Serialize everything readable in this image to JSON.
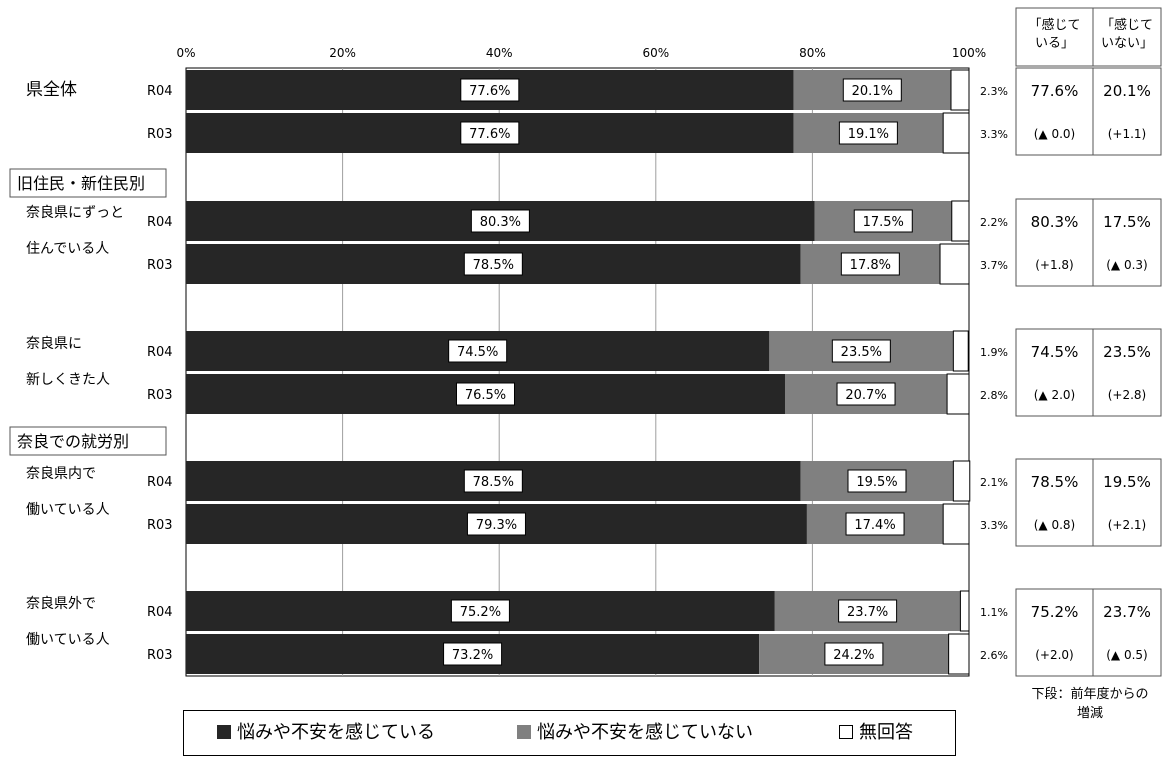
{
  "chart_data": {
    "type": "bar",
    "stacked": true,
    "orientation": "horizontal",
    "x_ticks": [
      "0%",
      "20%",
      "40%",
      "60%",
      "80%",
      "100%"
    ],
    "xlim": [
      0,
      100
    ],
    "grid": true,
    "legend_position": "bottom",
    "series": [
      {
        "name": "悩みや不安を感じている",
        "color": "#262626"
      },
      {
        "name": "悩みや不安を感じていない",
        "color": "#808080"
      },
      {
        "name": "無回答",
        "color": "#ffffff"
      }
    ],
    "summary_headers": [
      "「感じて\nいる」",
      "「感じて\nいない」"
    ],
    "groups": [
      {
        "section_header": "",
        "label_lines": [
          "県全体"
        ],
        "rows": [
          {
            "year": "R04",
            "values": [
              77.6,
              20.1,
              2.3
            ],
            "labels": [
              "77.6%",
              "20.1%",
              "2.3%"
            ]
          },
          {
            "year": "R03",
            "values": [
              77.6,
              19.1,
              3.3
            ],
            "labels": [
              "77.6%",
              "19.1%",
              "3.3%"
            ]
          }
        ],
        "summary": {
          "top": [
            "77.6%",
            "20.1%"
          ],
          "bottom": [
            "(▲ 0.0)",
            "(+1.1)"
          ]
        }
      },
      {
        "section_header": "旧住民・新住民別",
        "label_lines": [
          "奈良県にずっと",
          "住んでいる人"
        ],
        "rows": [
          {
            "year": "R04",
            "values": [
              80.3,
              17.5,
              2.2
            ],
            "labels": [
              "80.3%",
              "17.5%",
              "2.2%"
            ]
          },
          {
            "year": "R03",
            "values": [
              78.5,
              17.8,
              3.7
            ],
            "labels": [
              "78.5%",
              "17.8%",
              "3.7%"
            ]
          }
        ],
        "summary": {
          "top": [
            "80.3%",
            "17.5%"
          ],
          "bottom": [
            "(+1.8)",
            "(▲ 0.3)"
          ]
        }
      },
      {
        "section_header": "",
        "label_lines": [
          "奈良県に",
          "新しくきた人"
        ],
        "rows": [
          {
            "year": "R04",
            "values": [
              74.5,
              23.5,
              1.9
            ],
            "labels": [
              "74.5%",
              "23.5%",
              "1.9%"
            ]
          },
          {
            "year": "R03",
            "values": [
              76.5,
              20.7,
              2.8
            ],
            "labels": [
              "76.5%",
              "20.7%",
              "2.8%"
            ]
          }
        ],
        "summary": {
          "top": [
            "74.5%",
            "23.5%"
          ],
          "bottom": [
            "(▲ 2.0)",
            "(+2.8)"
          ]
        }
      },
      {
        "section_header": "奈良での就労別",
        "label_lines": [
          "奈良県内で",
          "働いている人"
        ],
        "rows": [
          {
            "year": "R04",
            "values": [
              78.5,
              19.5,
              2.1
            ],
            "labels": [
              "78.5%",
              "19.5%",
              "2.1%"
            ]
          },
          {
            "year": "R03",
            "values": [
              79.3,
              17.4,
              3.3
            ],
            "labels": [
              "79.3%",
              "17.4%",
              "3.3%"
            ]
          }
        ],
        "summary": {
          "top": [
            "78.5%",
            "19.5%"
          ],
          "bottom": [
            "(▲ 0.8)",
            "(+2.1)"
          ]
        }
      },
      {
        "section_header": "",
        "label_lines": [
          "奈良県外で",
          "働いている人"
        ],
        "rows": [
          {
            "year": "R04",
            "values": [
              75.2,
              23.7,
              1.1
            ],
            "labels": [
              "75.2%",
              "23.7%",
              "1.1%"
            ]
          },
          {
            "year": "R03",
            "values": [
              73.2,
              24.2,
              2.6
            ],
            "labels": [
              "73.2%",
              "24.2%",
              "2.6%"
            ]
          }
        ],
        "summary": {
          "top": [
            "75.2%",
            "23.7%"
          ],
          "bottom": [
            "(+2.0)",
            "(▲ 0.5)"
          ]
        }
      }
    ]
  },
  "note": [
    "下段：前年度からの",
    "増減"
  ]
}
